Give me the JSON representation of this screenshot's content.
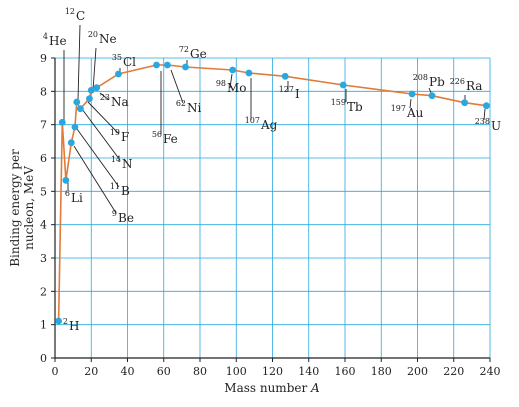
{
  "chart_data": {
    "type": "line",
    "title": "",
    "xlabel_text": "Mass number ",
    "xlabel_var": "A",
    "ylabel_line1": "Binding energy per",
    "ylabel_line2": "nucleon, MeV",
    "xlim": [
      0,
      240
    ],
    "ylim": [
      0,
      9
    ],
    "x_ticks": [
      0,
      20,
      40,
      60,
      80,
      100,
      120,
      140,
      160,
      180,
      200,
      220,
      240
    ],
    "y_ticks": [
      0,
      1,
      2,
      3,
      4,
      5,
      6,
      7,
      8,
      9
    ],
    "grid": true,
    "points": [
      {
        "x": 2,
        "y": 1.11
      },
      {
        "x": 4,
        "y": 7.07
      },
      {
        "x": 6,
        "y": 5.33
      },
      {
        "x": 9,
        "y": 6.46
      },
      {
        "x": 11,
        "y": 6.93
      },
      {
        "x": 12,
        "y": 7.68
      },
      {
        "x": 14,
        "y": 7.48
      },
      {
        "x": 19,
        "y": 7.78
      },
      {
        "x": 20,
        "y": 8.03
      },
      {
        "x": 23,
        "y": 8.11
      },
      {
        "x": 35,
        "y": 8.52
      },
      {
        "x": 56,
        "y": 8.79
      },
      {
        "x": 62,
        "y": 8.79
      },
      {
        "x": 72,
        "y": 8.73
      },
      {
        "x": 98,
        "y": 8.64
      },
      {
        "x": 107,
        "y": 8.55
      },
      {
        "x": 127,
        "y": 8.45
      },
      {
        "x": 159,
        "y": 8.19
      },
      {
        "x": 197,
        "y": 7.92
      },
      {
        "x": 208,
        "y": 7.87
      },
      {
        "x": 226,
        "y": 7.66
      },
      {
        "x": 238,
        "y": 7.57
      }
    ],
    "labels": [
      {
        "mass": "2",
        "symbol": "H"
      },
      {
        "mass": "4",
        "symbol": "He"
      },
      {
        "mass": "6",
        "symbol": "Li"
      },
      {
        "mass": "9",
        "symbol": "Be"
      },
      {
        "mass": "11",
        "symbol": "B"
      },
      {
        "mass": "12",
        "symbol": "C"
      },
      {
        "mass": "14",
        "symbol": "N"
      },
      {
        "mass": "19",
        "symbol": "F"
      },
      {
        "mass": "20",
        "symbol": "Ne"
      },
      {
        "mass": "23",
        "symbol": "Na"
      },
      {
        "mass": "35",
        "symbol": "Cl"
      },
      {
        "mass": "56",
        "symbol": "Fe"
      },
      {
        "mass": "62",
        "symbol": "Ni"
      },
      {
        "mass": "72",
        "symbol": "Ge"
      },
      {
        "mass": "98",
        "symbol": "Mo"
      },
      {
        "mass": "107",
        "symbol": "Ag"
      },
      {
        "mass": "127",
        "symbol": "I"
      },
      {
        "mass": "159",
        "symbol": "Tb"
      },
      {
        "mass": "197",
        "symbol": "Au"
      },
      {
        "mass": "208",
        "symbol": "Pb"
      },
      {
        "mass": "226",
        "symbol": "Ra"
      },
      {
        "mass": "238",
        "symbol": "U"
      }
    ],
    "colors": {
      "curve": "#e07b39",
      "point": "#29a8e0",
      "grid": "#29a8e0",
      "axis": "#222222",
      "leader": "#222222"
    }
  }
}
